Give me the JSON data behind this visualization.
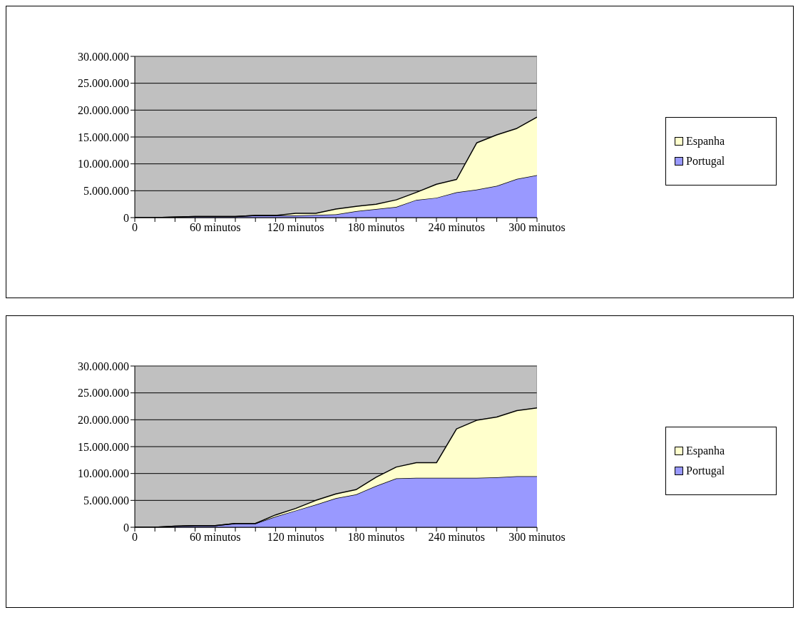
{
  "chart_data": [
    {
      "type": "area",
      "stacked": true,
      "grid": "y",
      "legend": "right",
      "x": [
        0,
        15,
        30,
        45,
        60,
        75,
        90,
        105,
        120,
        135,
        150,
        165,
        180,
        195,
        210,
        225,
        240,
        255,
        270,
        285,
        300
      ],
      "series": [
        {
          "name": "Portugal",
          "color": "#9999ff",
          "values": [
            0,
            0,
            100000,
            200000,
            200000,
            200000,
            400000,
            400000,
            400000,
            500000,
            600000,
            1200000,
            1600000,
            2000000,
            3300000,
            3700000,
            4700000,
            5200000,
            5900000,
            7200000,
            7900000
          ]
        },
        {
          "name": "Espanha",
          "color": "#ffffcc",
          "values": [
            0,
            0,
            0,
            0,
            0,
            0,
            0,
            0,
            400000,
            300000,
            1000000,
            900000,
            900000,
            1300000,
            1400000,
            2500000,
            2400000,
            8700000,
            9500000,
            9400000,
            10800000
          ]
        }
      ],
      "xlim": [
        0,
        300
      ],
      "xticks": [
        0,
        {
          "value": 15,
          "label": null
        },
        {
          "value": 30,
          "label": null
        },
        {
          "value": 45,
          "label": null
        },
        {
          "value": 60,
          "label": "60 minutos"
        },
        {
          "value": 75,
          "label": null
        },
        {
          "value": 90,
          "label": null
        },
        {
          "value": 105,
          "label": null
        },
        {
          "value": 120,
          "label": "120 minutos"
        },
        {
          "value": 135,
          "label": null
        },
        {
          "value": 150,
          "label": null
        },
        {
          "value": 165,
          "label": null
        },
        {
          "value": 180,
          "label": "180 minutos"
        },
        {
          "value": 195,
          "label": null
        },
        {
          "value": 210,
          "label": null
        },
        {
          "value": 225,
          "label": null
        },
        {
          "value": 240,
          "label": "240 minutos"
        },
        {
          "value": 255,
          "label": null
        },
        {
          "value": 270,
          "label": null
        },
        {
          "value": 285,
          "label": null
        },
        {
          "value": 300,
          "label": "300 minutos"
        }
      ],
      "ylim": [
        0,
        30000000
      ],
      "yticks": [
        0,
        {
          "value": 5000000,
          "label": "5.000.000"
        },
        {
          "value": 10000000,
          "label": "10.000.000"
        },
        {
          "value": 15000000,
          "label": "15.000.000"
        },
        {
          "value": 20000000,
          "label": "20.000.000"
        },
        {
          "value": 25000000,
          "label": "25.000.000"
        },
        {
          "value": 30000000,
          "label": "30.000.000"
        }
      ]
    },
    {
      "type": "area",
      "stacked": true,
      "grid": "y",
      "legend": "right",
      "x": [
        0,
        15,
        30,
        45,
        60,
        75,
        90,
        105,
        120,
        135,
        150,
        165,
        180,
        195,
        210,
        225,
        240,
        255,
        270,
        285,
        300
      ],
      "series": [
        {
          "name": "Portugal",
          "color": "#9999ff",
          "values": [
            0,
            0,
            200000,
            300000,
            300000,
            700000,
            700000,
            2000000,
            3100000,
            4200000,
            5400000,
            6100000,
            7700000,
            9100000,
            9200000,
            9200000,
            9200000,
            9200000,
            9300000,
            9500000,
            9500000
          ]
        },
        {
          "name": "Espanha",
          "color": "#ffffcc",
          "values": [
            0,
            0,
            0,
            0,
            0,
            0,
            0,
            300000,
            400000,
            800000,
            800000,
            900000,
            1600000,
            2100000,
            2800000,
            2800000,
            9100000,
            10700000,
            11200000,
            12200000,
            12700000
          ]
        }
      ],
      "xlim": [
        0,
        300
      ],
      "xticks": [
        0,
        {
          "value": 15,
          "label": null
        },
        {
          "value": 30,
          "label": null
        },
        {
          "value": 45,
          "label": null
        },
        {
          "value": 60,
          "label": "60 minutos"
        },
        {
          "value": 75,
          "label": null
        },
        {
          "value": 90,
          "label": null
        },
        {
          "value": 105,
          "label": null
        },
        {
          "value": 120,
          "label": "120 minutos"
        },
        {
          "value": 135,
          "label": null
        },
        {
          "value": 150,
          "label": null
        },
        {
          "value": 165,
          "label": null
        },
        {
          "value": 180,
          "label": "180 minutos"
        },
        {
          "value": 195,
          "label": null
        },
        {
          "value": 210,
          "label": null
        },
        {
          "value": 225,
          "label": null
        },
        {
          "value": 240,
          "label": "240 minutos"
        },
        {
          "value": 255,
          "label": null
        },
        {
          "value": 270,
          "label": null
        },
        {
          "value": 285,
          "label": null
        },
        {
          "value": 300,
          "label": "300 minutos"
        }
      ],
      "ylim": [
        0,
        30000000
      ],
      "yticks": [
        0,
        {
          "value": 5000000,
          "label": "5.000.000"
        },
        {
          "value": 10000000,
          "label": "10.000.000"
        },
        {
          "value": 15000000,
          "label": "15.000.000"
        },
        {
          "value": 20000000,
          "label": "20.000.000"
        },
        {
          "value": 25000000,
          "label": "25.000.000"
        },
        {
          "value": 30000000,
          "label": "30.000.000"
        }
      ]
    }
  ]
}
